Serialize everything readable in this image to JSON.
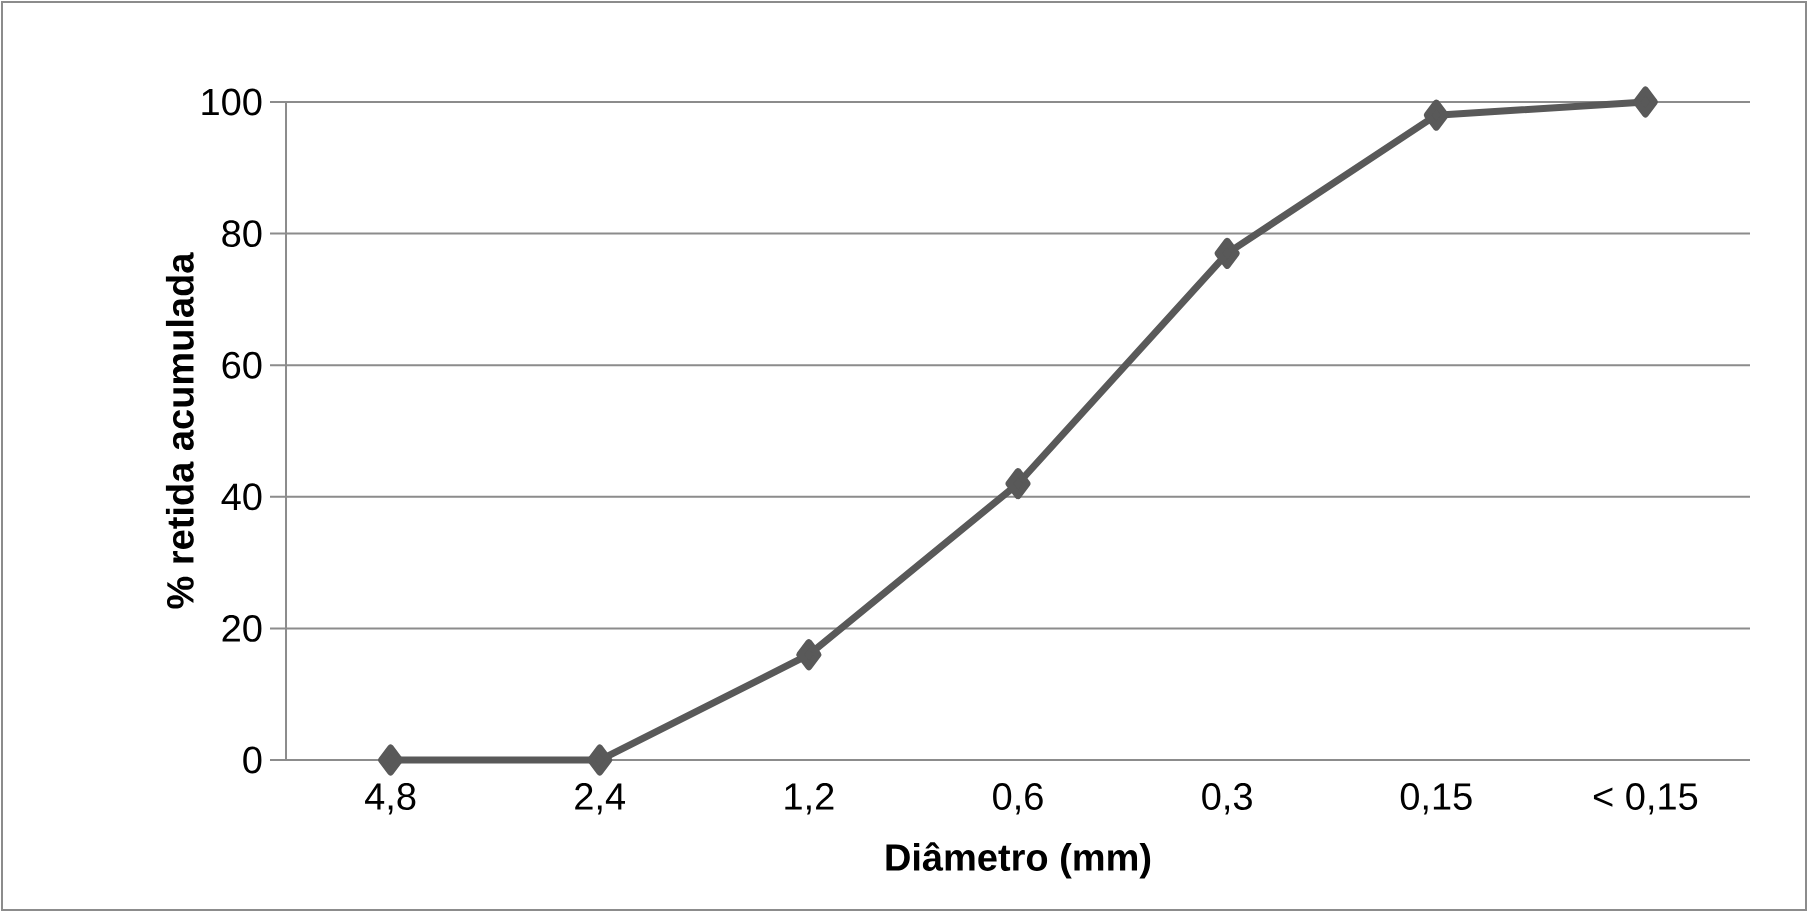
{
  "chart_data": {
    "type": "line",
    "xlabel": "Diâmetro (mm)",
    "ylabel": "% retida acumulada",
    "categories": [
      "4,8",
      "2,4",
      "1,2",
      "0,6",
      "0,3",
      "0,15",
      "< 0,15"
    ],
    "series": [
      {
        "color": "#595959",
        "values": [
          0,
          0,
          16,
          42,
          77,
          98,
          100
        ]
      }
    ],
    "ylim": [
      0,
      100
    ],
    "yticks": [
      0,
      20,
      40,
      60,
      80,
      100
    ],
    "grid": "y",
    "marker": "diamond",
    "line_style": "solid"
  }
}
